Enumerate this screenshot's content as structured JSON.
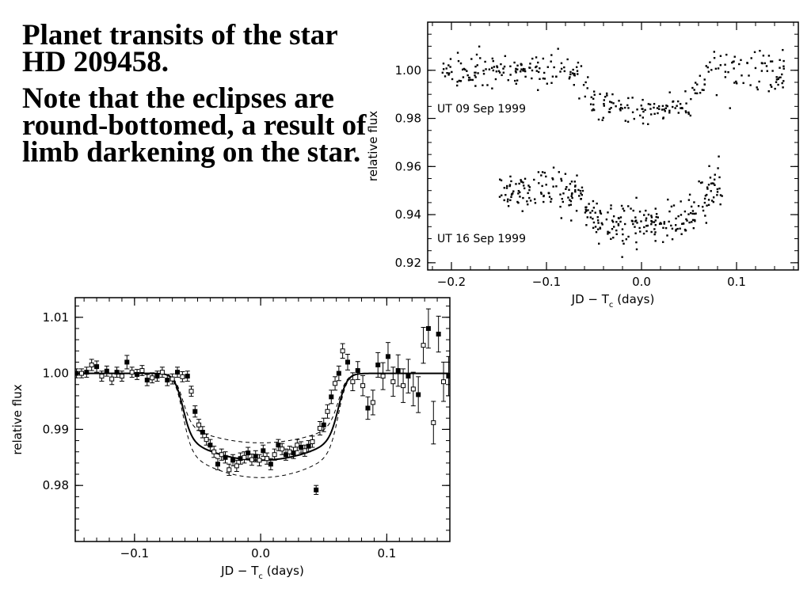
{
  "slide": {
    "title": "Planet transits of the star HD 209458.",
    "note": "Note that the eclipses are round-bottomed, a result of limb darkening on the star."
  },
  "chart_data": [
    {
      "id": "top",
      "type": "scatter",
      "xlabel": "JD − T",
      "xlabel_sub": "c",
      "xlabel_suffix": " (days)",
      "ylabel": "relative flux",
      "xlim": [
        -0.225,
        0.165
      ],
      "ylim": [
        0.917,
        1.02
      ],
      "xticks": [
        -0.2,
        -0.1,
        0.0,
        0.1
      ],
      "xtick_labels": [
        "−0.2",
        "−0.1",
        "0.0",
        "0.1"
      ],
      "yticks": [
        0.92,
        0.94,
        0.96,
        0.98,
        1.0
      ],
      "ytick_labels": [
        "0.92",
        "0.94",
        "0.96",
        "0.98",
        "1.00"
      ],
      "series": [
        {
          "name": "UT 09 Sep 1999",
          "label_at": [
            -0.215,
            0.9825
          ],
          "x_range": [
            -0.21,
            0.15
          ],
          "baseline": 1.0,
          "depth": 0.0165,
          "scatter": 0.003,
          "n_points": 330
        },
        {
          "name": "UT 16 Sep 1999",
          "label_at": [
            -0.215,
            0.9285
          ],
          "x_range": [
            -0.15,
            0.085
          ],
          "baseline": 0.95,
          "depth": 0.0145,
          "scatter": 0.0045,
          "n_points": 320
        }
      ],
      "transit_model": {
        "ingress": -0.06,
        "egress": 0.06,
        "duration_ingress": 0.012
      },
      "grid": false
    },
    {
      "id": "bottom",
      "type": "scatter",
      "xlabel": "JD − T",
      "xlabel_sub": "c",
      "xlabel_suffix": " (days)",
      "ylabel": "relative flux",
      "xlim": [
        -0.147,
        0.15
      ],
      "ylim": [
        0.97,
        1.0135
      ],
      "xticks": [
        -0.1,
        0.0,
        0.1
      ],
      "xtick_labels": [
        "−0.1",
        "0.0",
        "0.1"
      ],
      "yticks": [
        0.98,
        0.99,
        1.0,
        1.01
      ],
      "ytick_labels": [
        "0.98",
        "0.99",
        "1.00",
        "1.01"
      ],
      "model": {
        "baseline": 1.0,
        "depth": 0.0155,
        "ingress": -0.062,
        "egress": 0.062,
        "ingress_width": 0.014,
        "band": 0.003
      },
      "points": [
        [
          -0.146,
          1.0,
          0.0008
        ],
        [
          -0.142,
          1.0,
          0.0008
        ],
        [
          -0.138,
          1.0002,
          0.0009
        ],
        [
          -0.134,
          1.0015,
          0.001
        ],
        [
          -0.13,
          1.0012,
          0.001
        ],
        [
          -0.126,
          0.9995,
          0.0009
        ],
        [
          -0.122,
          1.0004,
          0.0009
        ],
        [
          -0.118,
          0.999,
          0.001
        ],
        [
          -0.114,
          1.0002,
          0.0009
        ],
        [
          -0.11,
          0.9995,
          0.0009
        ],
        [
          -0.106,
          1.002,
          0.0012
        ],
        [
          -0.102,
          1.0002,
          0.0009
        ],
        [
          -0.098,
          0.9998,
          0.0009
        ],
        [
          -0.094,
          1.0005,
          0.0009
        ],
        [
          -0.09,
          0.9988,
          0.001
        ],
        [
          -0.086,
          0.9992,
          0.0009
        ],
        [
          -0.082,
          0.9995,
          0.0009
        ],
        [
          -0.078,
          1.0002,
          0.0009
        ],
        [
          -0.074,
          0.9988,
          0.001
        ],
        [
          -0.07,
          0.999,
          0.0009
        ],
        [
          -0.066,
          1.0002,
          0.0009
        ],
        [
          -0.062,
          0.9994,
          0.0009
        ],
        [
          -0.058,
          0.9995,
          0.0009
        ],
        [
          -0.055,
          0.9968,
          0.0009
        ],
        [
          -0.052,
          0.9932,
          0.001
        ],
        [
          -0.049,
          0.9908,
          0.001
        ],
        [
          -0.046,
          0.9895,
          0.001
        ],
        [
          -0.043,
          0.9882,
          0.001
        ],
        [
          -0.04,
          0.9872,
          0.001
        ],
        [
          -0.037,
          0.986,
          0.001
        ],
        [
          -0.034,
          0.9838,
          0.001
        ],
        [
          -0.031,
          0.9855,
          0.001
        ],
        [
          -0.028,
          0.985,
          0.001
        ],
        [
          -0.025,
          0.9828,
          0.001
        ],
        [
          -0.022,
          0.9845,
          0.001
        ],
        [
          -0.019,
          0.9835,
          0.001
        ],
        [
          -0.016,
          0.9848,
          0.001
        ],
        [
          -0.013,
          0.985,
          0.001
        ],
        [
          -0.01,
          0.9858,
          0.001
        ],
        [
          -0.007,
          0.9846,
          0.001
        ],
        [
          -0.004,
          0.9852,
          0.001
        ],
        [
          -0.001,
          0.9845,
          0.001
        ],
        [
          0.002,
          0.9862,
          0.001
        ],
        [
          0.005,
          0.9848,
          0.001
        ],
        [
          0.008,
          0.9838,
          0.001
        ],
        [
          0.011,
          0.9855,
          0.001
        ],
        [
          0.014,
          0.9872,
          0.001
        ],
        [
          0.017,
          0.9865,
          0.001
        ],
        [
          0.02,
          0.9855,
          0.001
        ],
        [
          0.023,
          0.986,
          0.001
        ],
        [
          0.026,
          0.9858,
          0.001
        ],
        [
          0.029,
          0.9872,
          0.001
        ],
        [
          0.032,
          0.9868,
          0.001
        ],
        [
          0.035,
          0.9862,
          0.001
        ],
        [
          0.038,
          0.987,
          0.001
        ],
        [
          0.041,
          0.9878,
          0.001
        ],
        [
          0.044,
          0.9792,
          0.0008
        ],
        [
          0.047,
          0.9902,
          0.0012
        ],
        [
          0.05,
          0.9908,
          0.0012
        ],
        [
          0.053,
          0.9932,
          0.0012
        ],
        [
          0.056,
          0.9958,
          0.0012
        ],
        [
          0.059,
          0.9982,
          0.0012
        ],
        [
          0.062,
          1.0,
          0.0013
        ],
        [
          0.065,
          1.004,
          0.0013
        ],
        [
          0.069,
          1.002,
          0.0014
        ],
        [
          0.073,
          0.9985,
          0.0016
        ],
        [
          0.077,
          1.0005,
          0.0016
        ],
        [
          0.081,
          0.9978,
          0.0018
        ],
        [
          0.085,
          0.9938,
          0.002
        ],
        [
          0.089,
          0.9948,
          0.0022
        ],
        [
          0.093,
          1.0015,
          0.0022
        ],
        [
          0.097,
          0.9995,
          0.0024
        ],
        [
          0.101,
          1.003,
          0.0025
        ],
        [
          0.105,
          0.9985,
          0.0026
        ],
        [
          0.109,
          1.0005,
          0.0028
        ],
        [
          0.113,
          0.9978,
          0.003
        ],
        [
          0.117,
          0.9995,
          0.003
        ],
        [
          0.121,
          0.9972,
          0.003
        ],
        [
          0.125,
          0.9962,
          0.0032
        ],
        [
          0.129,
          1.005,
          0.0032
        ],
        [
          0.133,
          1.008,
          0.0035
        ],
        [
          0.137,
          0.9912,
          0.0038
        ],
        [
          0.141,
          1.007,
          0.0032
        ],
        [
          0.145,
          0.9985,
          0.0035
        ],
        [
          0.149,
          0.9995,
          0.0035
        ]
      ],
      "grid": false
    }
  ]
}
